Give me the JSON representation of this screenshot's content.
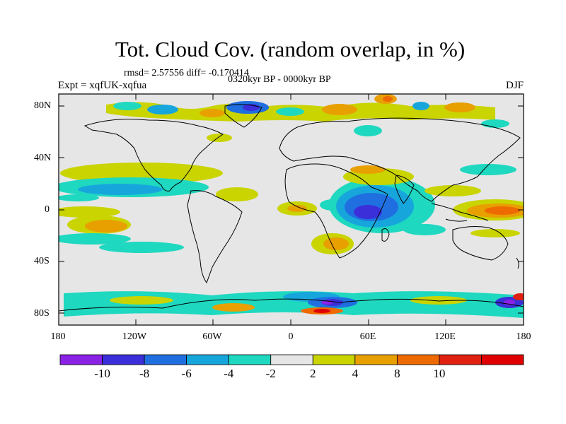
{
  "title": "Tot. Cloud Cov. (random overlap, in %)",
  "stats": "rmsd= 2.57556 diff= -0.170414",
  "period": "0320kyr BP - 0000kyr BP",
  "experiment": "Expt = xqfUK-xqfua",
  "season": "DJF",
  "lat_ticks": [
    "80N",
    "40N",
    "0",
    "40S",
    "80S"
  ],
  "lon_ticks": [
    "180",
    "120W",
    "60W",
    "0",
    "60E",
    "120E",
    "180"
  ],
  "colorbar": {
    "labels": [
      "-10",
      "-8",
      "-6",
      "-4",
      "-2",
      "2",
      "4",
      "8",
      "10"
    ],
    "colors": [
      "#8a22e6",
      "#3a2fd8",
      "#1f6fe0",
      "#17a6dc",
      "#1ed8c0",
      "#e6e6e6",
      "#c9d400",
      "#e8a000",
      "#ee6a00",
      "#e02010",
      "#e00000"
    ]
  }
}
